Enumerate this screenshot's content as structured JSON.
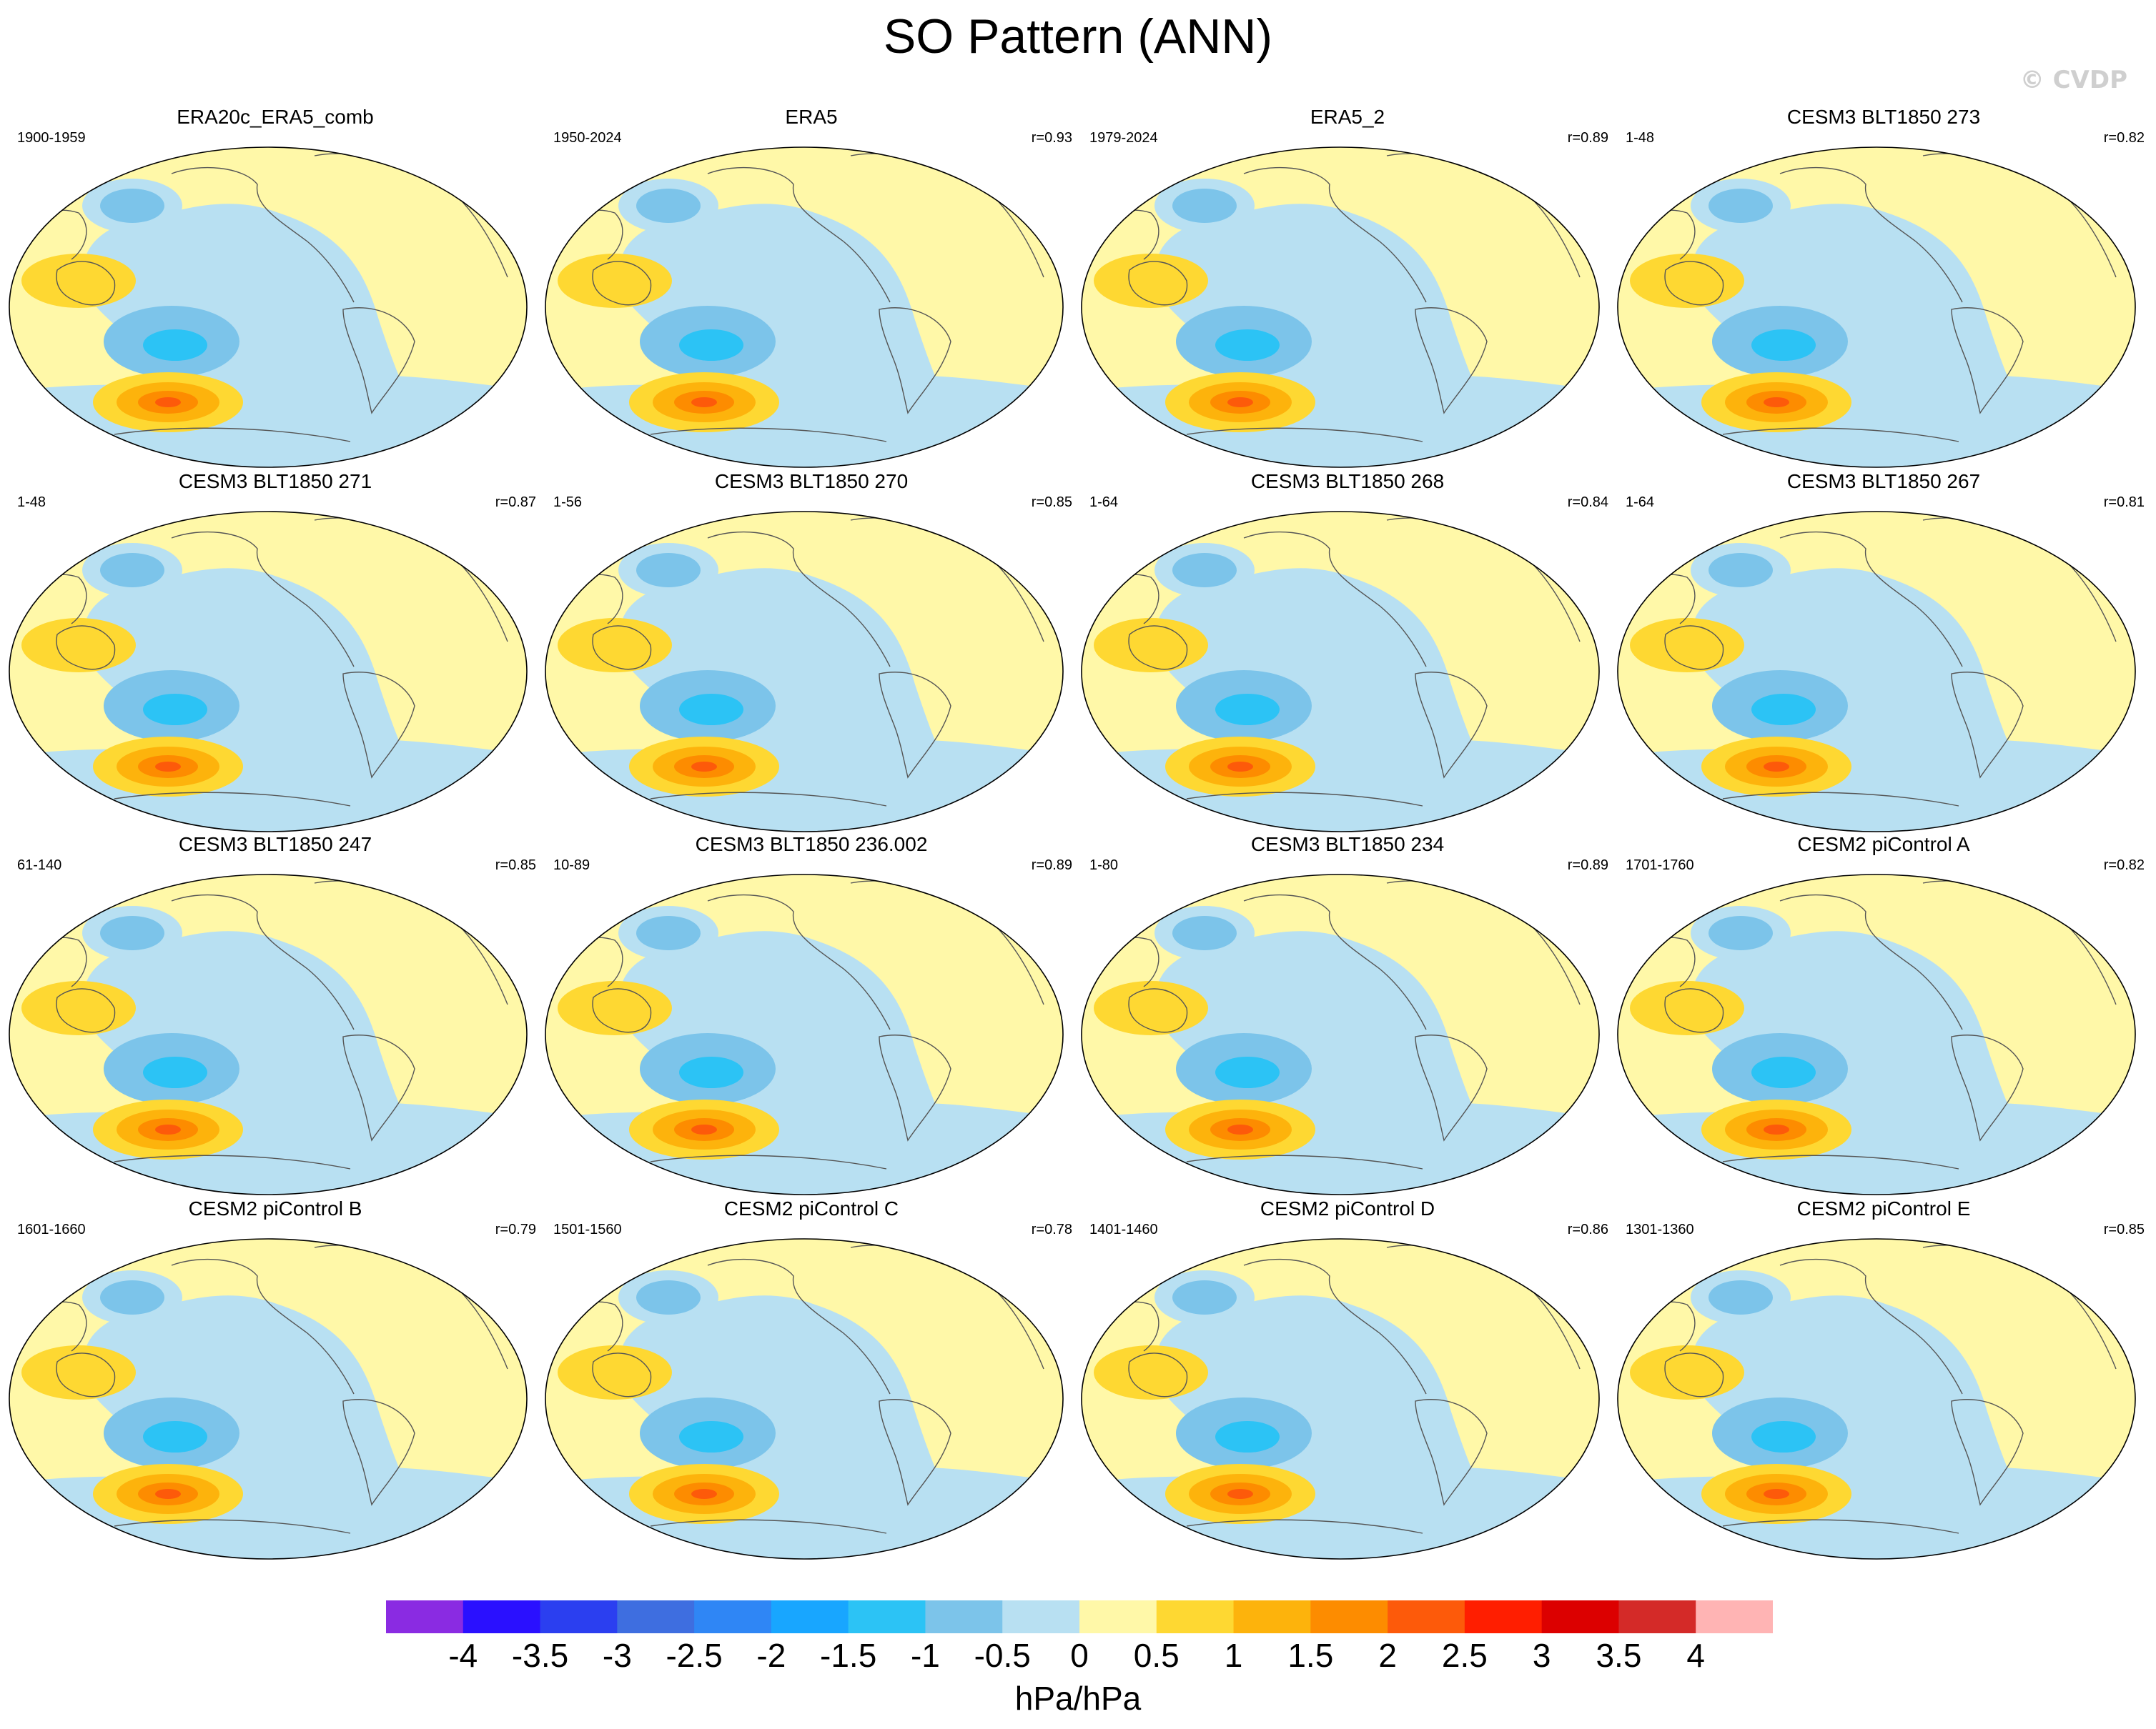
{
  "figure": {
    "title": "SO Pattern (ANN)",
    "watermark": "© CVDP"
  },
  "panels": [
    {
      "title": "ERA20c_ERA5_comb",
      "period": "1900-1959",
      "r": ""
    },
    {
      "title": "ERA5",
      "period": "1950-2024",
      "r": "r=0.93"
    },
    {
      "title": "ERA5_2",
      "period": "1979-2024",
      "r": "r=0.89"
    },
    {
      "title": "CESM3 BLT1850 273",
      "period": "1-48",
      "r": "r=0.82"
    },
    {
      "title": "CESM3 BLT1850 271",
      "period": "1-48",
      "r": "r=0.87"
    },
    {
      "title": "CESM3 BLT1850 270",
      "period": "1-56",
      "r": "r=0.85"
    },
    {
      "title": "CESM3 BLT1850 268",
      "period": "1-64",
      "r": "r=0.84"
    },
    {
      "title": "CESM3 BLT1850 267",
      "period": "1-64",
      "r": "r=0.81"
    },
    {
      "title": "CESM3 BLT1850 247",
      "period": "61-140",
      "r": "r=0.85"
    },
    {
      "title": "CESM3 BLT1850 236.002",
      "period": "10-89",
      "r": "r=0.89"
    },
    {
      "title": "CESM3 BLT1850 234",
      "period": "1-80",
      "r": "r=0.89"
    },
    {
      "title": "CESM2 piControl A",
      "period": "1701-1760",
      "r": "r=0.82"
    },
    {
      "title": "CESM2 piControl B",
      "period": "1601-1660",
      "r": "r=0.79"
    },
    {
      "title": "CESM2 piControl C",
      "period": "1501-1560",
      "r": "r=0.78"
    },
    {
      "title": "CESM2 piControl D",
      "period": "1401-1460",
      "r": "r=0.86"
    },
    {
      "title": "CESM2 piControl E",
      "period": "1301-1360",
      "r": "r=0.85"
    }
  ],
  "colorbar": {
    "labels": [
      "-4",
      "-3.5",
      "-3",
      "-2.5",
      "-2",
      "-1.5",
      "-1",
      "-0.5",
      "0",
      "0.5",
      "1",
      "1.5",
      "2",
      "2.5",
      "3",
      "3.5",
      "4"
    ],
    "colors": [
      "#8a2be2",
      "#2a10ff",
      "#2b3ff0",
      "#3e6ee0",
      "#2f86f5",
      "#18a6ff",
      "#2cc3f5",
      "#7cc4ea",
      "#b8e0f2",
      "#fff8a8",
      "#fed832",
      "#fdb30c",
      "#fd8c00",
      "#fd5a0a",
      "#ff1e00",
      "#dc0000",
      "#d42a28",
      "#ffb4b4"
    ],
    "units": "hPa/hPa"
  }
}
